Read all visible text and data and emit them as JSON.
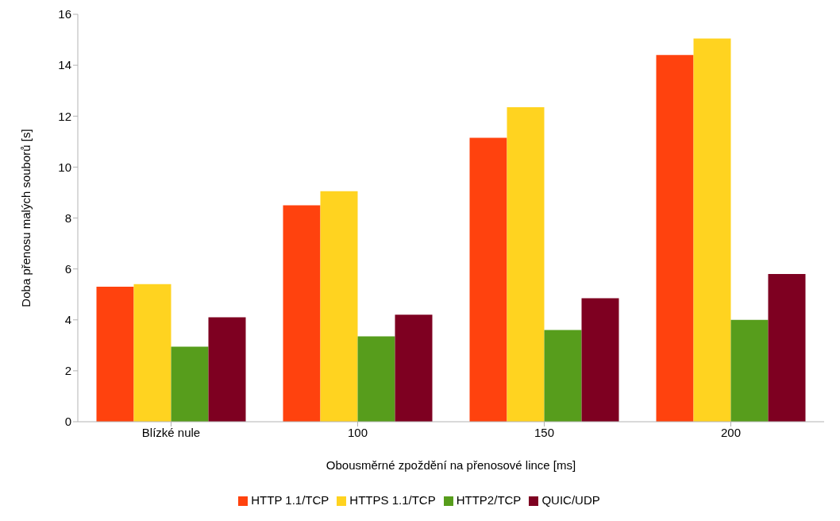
{
  "chart_data": {
    "type": "bar",
    "xlabel": "Obousměrné zpoždění na přenosové lince [ms]",
    "ylabel": "Doba přenosu malých souborů [s]",
    "categories": [
      "Blízké nule",
      "100",
      "150",
      "200"
    ],
    "series": [
      {
        "name": "HTTP 1.1/TCP",
        "color": "#ff420e",
        "values": [
          5.3,
          8.5,
          11.15,
          14.4
        ]
      },
      {
        "name": "HTTPS 1.1/TCP",
        "color": "#ffd320",
        "values": [
          5.4,
          9.05,
          12.35,
          15.05
        ]
      },
      {
        "name": "HTTP2/TCP",
        "color": "#579d1c",
        "values": [
          2.95,
          3.35,
          3.6,
          4.0
        ]
      },
      {
        "name": "QUIC/UDP",
        "color": "#7e0021",
        "values": [
          4.1,
          4.2,
          4.85,
          5.8
        ]
      }
    ],
    "ylim": [
      0,
      16
    ],
    "yticks": [
      0,
      2,
      4,
      6,
      8,
      10,
      12,
      14,
      16
    ],
    "grid": false,
    "legend": "bottom"
  }
}
